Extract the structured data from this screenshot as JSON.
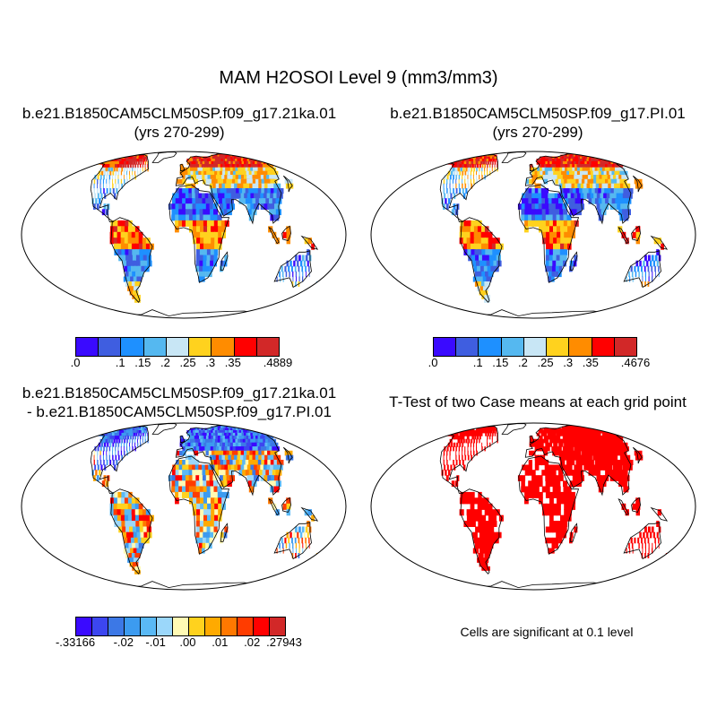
{
  "title": "MAM H2OSOI Level 9 (mm3/mm3)",
  "panels": [
    {
      "title_line1": "b.e21.B1850CAM5CLM50SP.f09_g17.21ka.01",
      "title_line2": "(yrs 270-299)",
      "kind": "abs"
    },
    {
      "title_line1": "b.e21.B1850CAM5CLM50SP.f09_g17.PI.01",
      "title_line2": "(yrs 270-299)",
      "kind": "abs"
    },
    {
      "title_line1": "b.e21.B1850CAM5CLM50SP.f09_g17.21ka.01",
      "title_line2": "- b.e21.B1850CAM5CLM50SP.f09_g17.PI.01",
      "kind": "diff"
    },
    {
      "title_line1": "T-Test of two Case means at each grid point",
      "title_line2": "",
      "kind": "sig"
    }
  ],
  "colorbars": {
    "abs1": {
      "colors": [
        "#3a0aff",
        "#3f5ee0",
        "#1e90ff",
        "#55b8f0",
        "#c8e6f5",
        "#ffd21e",
        "#ff8c00",
        "#ff0000",
        "#d22828"
      ],
      "labels": [
        ".0",
        ".1",
        ".15",
        ".2",
        ".25",
        ".3",
        ".35",
        ".4889"
      ]
    },
    "abs2": {
      "colors": [
        "#3a0aff",
        "#3f5ee0",
        "#1e90ff",
        "#55b8f0",
        "#c8e6f5",
        "#ffd21e",
        "#ff8c00",
        "#ff0000",
        "#d22828"
      ],
      "labels": [
        ".0",
        ".1",
        ".15",
        ".2",
        ".25",
        ".3",
        ".35",
        ".4676"
      ]
    },
    "diff": {
      "colors": [
        "#3a0aff",
        "#3c46f0",
        "#3c78e6",
        "#3c9bf0",
        "#5ab9f5",
        "#9bd7fa",
        "#fffab4",
        "#ffd21e",
        "#ffaa00",
        "#ff7800",
        "#ff3c00",
        "#ff0000",
        "#d22828"
      ],
      "labels": [
        "-.33166",
        "-.02",
        "-.01",
        ".00",
        ".01",
        ".02",
        ".27943"
      ]
    }
  },
  "significance_note": "Cells are significant at 0.1 level",
  "colors": {
    "significant": "#ff0000"
  }
}
